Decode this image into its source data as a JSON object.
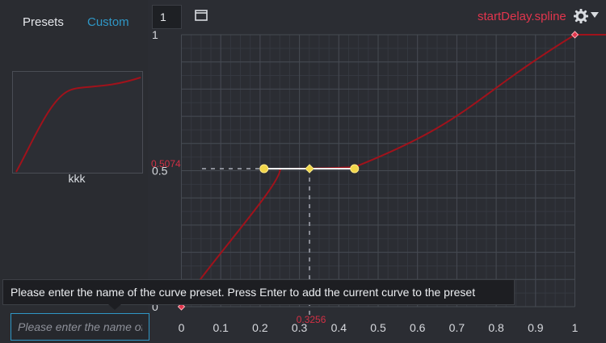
{
  "tabs": {
    "presets": "Presets",
    "custom": "Custom"
  },
  "preset": {
    "name": "kkk"
  },
  "tooltip": {
    "text": "Please enter the name of the curve preset. Press Enter to add the current curve to the preset"
  },
  "input": {
    "placeholder": "Please enter the name of the curve preset"
  },
  "toolbar": {
    "number": "1",
    "file_name": "startDelay.spline",
    "icon_window": "window-icon",
    "icon_settings": "gear-icon",
    "icon_dropdown": "chevron-down-icon"
  },
  "colors": {
    "accent_blue": "#2f97c6",
    "curve_red": "#a1121b",
    "label_red": "#e2354d",
    "handle_yellow": "#f1d649"
  },
  "chart_data": {
    "type": "line",
    "title": "",
    "xlabel": "",
    "ylabel": "",
    "xlim": [
      0,
      1
    ],
    "ylim": [
      0,
      1
    ],
    "x_ticks": [
      "0",
      "0.1",
      "0.2",
      "0.3",
      "0.4",
      "0.5",
      "0.6",
      "0.7",
      "0.8",
      "0.9",
      "1"
    ],
    "y_ticks": [
      "0",
      "0.5",
      "1"
    ],
    "selected_point": {
      "x": 0.3256,
      "y": 0.5074,
      "x_label": "0.3256",
      "y_label": "0.5074"
    },
    "keyframes": [
      {
        "x": 0,
        "y": 0
      },
      {
        "x": 0.3256,
        "y": 0.5074
      },
      {
        "x": 1,
        "y": 1
      }
    ],
    "tangent_handles": [
      {
        "x": 0.21,
        "y": 0.5074
      },
      {
        "x": 0.44,
        "y": 0.5074
      }
    ]
  }
}
